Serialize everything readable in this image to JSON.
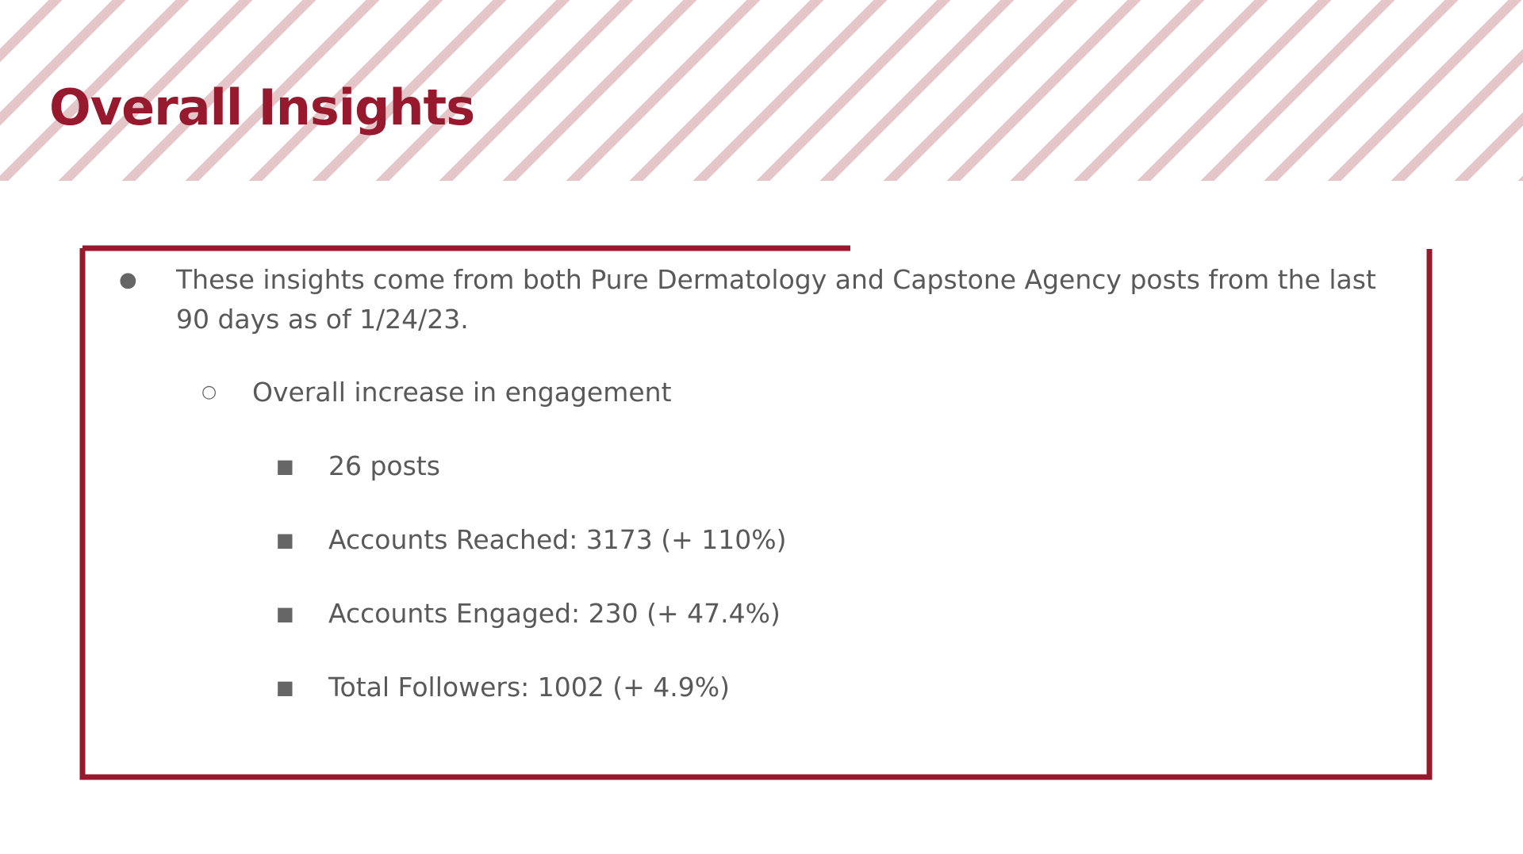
{
  "slide": {
    "title": "Overall Insights",
    "colors": {
      "accent": "#97192e",
      "stripe": "#e4c5c8",
      "body_text": "#595959"
    },
    "bullets": {
      "level1_symbol": "●",
      "level2_symbol": "○",
      "level3_symbol": "■"
    },
    "items": {
      "intro": "These insights come from both Pure Dermatology and Capstone Agency posts from the last 90 days as of 1/24/23.",
      "subheading": "Overall increase in engagement",
      "stats": [
        "26 posts",
        "Accounts Reached: 3173 (+ 110%)",
        "Accounts Engaged: 230 (+ 47.4%)",
        "Total Followers: 1002 (+ 4.9%)"
      ]
    }
  }
}
